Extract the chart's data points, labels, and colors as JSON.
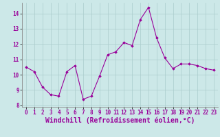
{
  "x": [
    0,
    1,
    2,
    3,
    4,
    5,
    6,
    7,
    8,
    9,
    10,
    11,
    12,
    13,
    14,
    15,
    16,
    17,
    18,
    19,
    20,
    21,
    22,
    23
  ],
  "y": [
    10.5,
    10.2,
    9.2,
    8.7,
    8.6,
    10.2,
    10.6,
    8.4,
    8.6,
    9.9,
    11.3,
    11.5,
    12.1,
    11.9,
    13.6,
    14.4,
    12.4,
    11.1,
    10.4,
    10.7,
    10.7,
    10.6,
    10.4,
    10.3
  ],
  "xlim": [
    -0.5,
    23.5
  ],
  "ylim": [
    7.9,
    14.7
  ],
  "yticks": [
    8,
    9,
    10,
    11,
    12,
    13,
    14
  ],
  "xticks": [
    0,
    1,
    2,
    3,
    4,
    5,
    6,
    7,
    8,
    9,
    10,
    11,
    12,
    13,
    14,
    15,
    16,
    17,
    18,
    19,
    20,
    21,
    22,
    23
  ],
  "xlabel": "Windchill (Refroidissement éolien,°C)",
  "line_color": "#990099",
  "marker": "D",
  "marker_size": 1.8,
  "bg_color": "#cce8e8",
  "grid_color": "#aacccc",
  "tick_label_fontsize": 5.5,
  "xlabel_fontsize": 7.0
}
